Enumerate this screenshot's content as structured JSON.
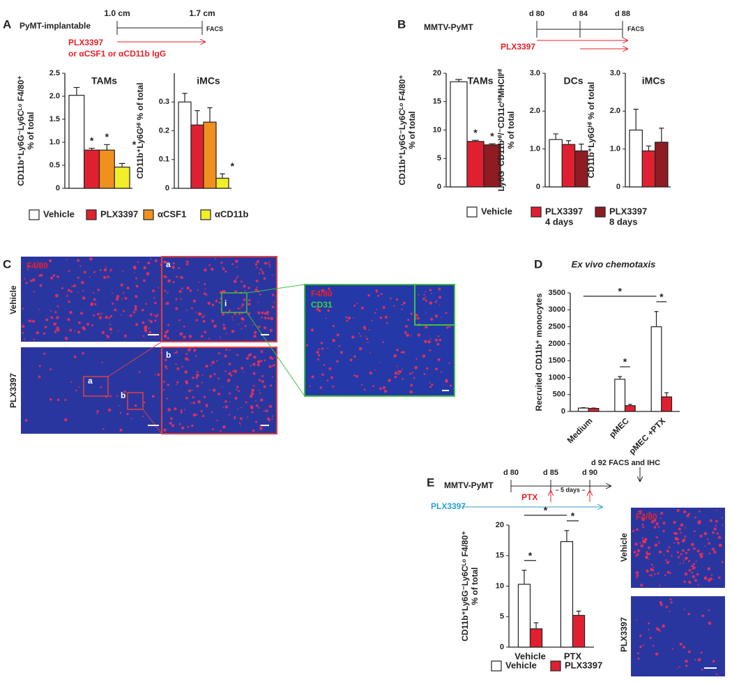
{
  "chart_data": [
    {
      "type": "bar",
      "title": "TAMs",
      "ylabel": [
        "CD11b⁺Ly6G⁻Ly6Cᴸᵒ F4/80⁺",
        "% of total"
      ],
      "categories": [
        null
      ],
      "ylim": [
        0,
        2.5
      ],
      "yticks": [
        0,
        0.5,
        {
          "value": 1,
          "label": "1.0"
        },
        1.5,
        {
          "value": 2,
          "label": "2.0"
        },
        2.5
      ],
      "legend": true,
      "series": [
        {
          "name": "Vehicle",
          "color": "#ffffff",
          "values": [
            2.02
          ],
          "errors": [
            0.17
          ]
        },
        {
          "name": "PLX3397",
          "color": "#e02030",
          "values": [
            0.83
          ],
          "errors": [
            0.04
          ],
          "annotation": "*"
        },
        {
          "name": "αCSF1",
          "color": "#f0901e",
          "values": [
            0.83
          ],
          "errors": [
            0.12
          ],
          "annotation": "*"
        },
        {
          "name": "αCD11b",
          "color": "#f2ee2a",
          "values": [
            0.46
          ],
          "errors": [
            0.08
          ],
          "annotation": "*"
        }
      ]
    },
    {
      "type": "bar",
      "title": "iMCs",
      "ylabel": [
        "CD11b⁺Ly6Gᴴⁱ % of total"
      ],
      "categories": [
        null
      ],
      "ylim": [
        0,
        0.4
      ],
      "yticks": [
        0,
        0.1,
        0.2,
        0.3
      ],
      "series": [
        {
          "color": "#ffffff",
          "values": [
            0.3
          ],
          "errors": [
            0.03
          ]
        },
        {
          "color": "#e02030",
          "values": [
            0.22
          ],
          "errors": [
            0.05
          ]
        },
        {
          "color": "#f0901e",
          "values": [
            0.23
          ],
          "errors": [
            0.05
          ]
        },
        {
          "color": "#f2ee2a",
          "values": [
            0.035
          ],
          "errors": [
            0.015
          ],
          "annotation": "*"
        }
      ]
    },
    {
      "type": "bar",
      "title": "TAMs",
      "ylabel": [
        "CD11b⁺Ly6G⁻Ly6Cᴸᵒ F4/80⁺",
        "% of total"
      ],
      "categories": [
        null
      ],
      "ylim": [
        0,
        20
      ],
      "yticks": [
        0,
        5,
        10,
        15,
        20
      ],
      "legend": true,
      "series": [
        {
          "name": [
            "Vehicle"
          ],
          "color": "#ffffff",
          "values": [
            18.5
          ],
          "errors": [
            0.4
          ]
        },
        {
          "name": [
            "PLX3397",
            "4 days"
          ],
          "color": "#e02030",
          "values": [
            8.0
          ],
          "errors": [
            0.2
          ],
          "annotation": "*"
        },
        {
          "name": [
            "PLX3397",
            "8 days"
          ],
          "color": "#8e1c22",
          "values": [
            7.4
          ],
          "errors": [
            0.2
          ],
          "annotation": "*"
        }
      ]
    },
    {
      "type": "bar",
      "title": "DCs",
      "ylabel": [
        "Ly6G⁻CD11bᴴⁱ/⁻CD11cᴴⁱMHCIIᴴⁱ",
        "% of total"
      ],
      "categories": [
        null
      ],
      "ylim": [
        0,
        3
      ],
      "yticks": [
        0,
        {
          "value": 1,
          "label": "1.0"
        },
        {
          "value": 2,
          "label": "2.0"
        },
        {
          "value": 3,
          "label": "3.0"
        }
      ],
      "series": [
        {
          "color": "#ffffff",
          "values": [
            1.25
          ],
          "errors": [
            0.15
          ]
        },
        {
          "color": "#e02030",
          "values": [
            1.12
          ],
          "errors": [
            0.1
          ]
        },
        {
          "color": "#8e1c22",
          "values": [
            0.95
          ],
          "errors": [
            0.18
          ]
        }
      ]
    },
    {
      "type": "bar",
      "title": "iMCs",
      "ylabel": [
        "CD11b⁺Ly6Gᴴⁱ % of total"
      ],
      "categories": [
        null
      ],
      "ylim": [
        0,
        3
      ],
      "yticks": [
        0,
        {
          "value": 1,
          "label": "1.0"
        },
        {
          "value": 2,
          "label": "2.0"
        },
        {
          "value": 3,
          "label": "3.0"
        }
      ],
      "series": [
        {
          "color": "#ffffff",
          "values": [
            1.5
          ],
          "errors": [
            0.55
          ]
        },
        {
          "color": "#e02030",
          "values": [
            0.95
          ],
          "errors": [
            0.13
          ]
        },
        {
          "color": "#8e1c22",
          "values": [
            1.18
          ],
          "errors": [
            0.37
          ]
        }
      ]
    },
    {
      "type": "bar",
      "title": "Ex vivo chemotaxis",
      "ylabel": [
        "Recruited CD11b⁺ monocytes"
      ],
      "categories": [
        "Medium",
        "pMEC",
        "pMEC +PTX"
      ],
      "x_label_rotation": -45,
      "ylim": [
        0,
        3500
      ],
      "yticks": [
        0,
        500,
        1000,
        1500,
        2000,
        2500,
        3000,
        3500
      ],
      "series": [
        {
          "color": "#ffffff",
          "values": [
            100,
            950,
            2500
          ],
          "errors": [
            10,
            80,
            450
          ]
        },
        {
          "color": "#e02030",
          "values": [
            90,
            170,
            430
          ],
          "errors": [
            10,
            40,
            120
          ]
        }
      ],
      "brackets": [
        {
          "label": "*",
          "from": [
            1,
            0
          ],
          "to": [
            1,
            1
          ]
        },
        {
          "label": "*",
          "from": [
            2,
            0
          ],
          "to": [
            2,
            1
          ]
        },
        {
          "label": "*",
          "from": [
            0,
            0
          ],
          "to": [
            2,
            0
          ]
        }
      ]
    },
    {
      "type": "bar",
      "ylabel": [
        "CD11b⁺Ly6G⁻Ly6Cᴸᵒ F4/80⁺",
        "% of total"
      ],
      "categories": [
        "Vehicle",
        "PTX"
      ],
      "ylim": [
        0,
        20
      ],
      "yticks": [
        0,
        5,
        10,
        15,
        20
      ],
      "legend": true,
      "series": [
        {
          "name": "Vehicle",
          "color": "#ffffff",
          "values": [
            10.3,
            17.3
          ],
          "errors": [
            2.3,
            1.8
          ]
        },
        {
          "name": "PLX3397",
          "color": "#e02030",
          "values": [
            3.0,
            5.2
          ],
          "errors": [
            1.0,
            0.7
          ]
        }
      ],
      "brackets": [
        {
          "label": "*",
          "from": [
            0,
            0
          ],
          "to": [
            0,
            1
          ]
        },
        {
          "label": "*",
          "from": [
            1,
            0
          ],
          "to": [
            1,
            1
          ]
        },
        {
          "label": "*",
          "from": [
            0,
            0
          ],
          "to": [
            1,
            0
          ]
        }
      ]
    }
  ],
  "panels": {
    "A": {
      "letter": "A",
      "model": "PyMT-implantable",
      "timeline": [
        "1.0 cm",
        "1.7 cm",
        "FACS"
      ],
      "treatment": [
        "PLX3397",
        "or αCSF1 or αCD11b IgG"
      ]
    },
    "B": {
      "letter": "B",
      "model": "MMTV-PyMT",
      "timeline": [
        "d 80",
        "d 84",
        "d 88",
        "FACS"
      ],
      "treatment": "PLX3397"
    },
    "C": {
      "letter": "C",
      "stain": "F4/80",
      "rows": [
        "Vehicle",
        "PLX3397"
      ],
      "regions": [
        "a",
        "b"
      ],
      "region_tags": [
        "a",
        "b"
      ],
      "inset": "i",
      "zoom_stains": [
        "F4/80",
        "CD31"
      ]
    },
    "D": {
      "letter": "D"
    },
    "E": {
      "letter": "E",
      "model": "MMTV-PyMT",
      "timeline": [
        "d 80",
        "d 85",
        "d 90",
        "d 92 FACS and IHC"
      ],
      "injection": "PTX",
      "interval": "– 5 days –",
      "treatment": "PLX3397",
      "stain": "F4/80",
      "rows": [
        "Vehicle",
        "PLX3397"
      ]
    }
  }
}
